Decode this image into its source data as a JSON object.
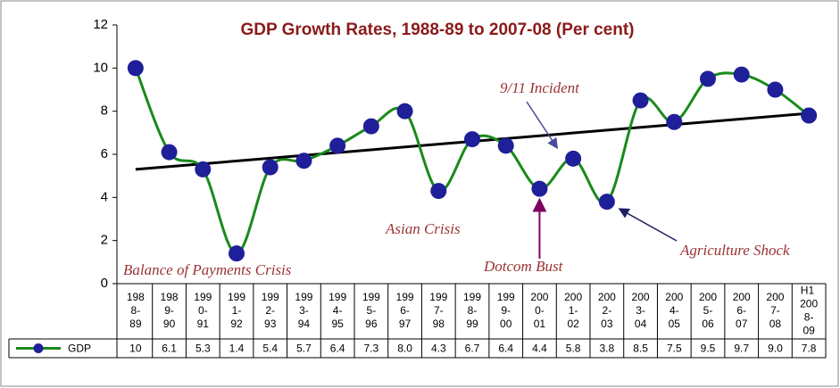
{
  "chart_data": {
    "type": "line",
    "title": "GDP Growth Rates, 1988-89  to 2007-08 (Per cent)",
    "categories": [
      "1988-89",
      "1989-90",
      "1990-91",
      "1991-92",
      "1992-93",
      "1993-94",
      "1994-95",
      "1995-96",
      "1996-97",
      "1997-98",
      "1998-99",
      "1999-00",
      "2000-01",
      "2001-02",
      "2002-03",
      "2003-04",
      "2004-05",
      "2005-06",
      "2006-07",
      "2007-08",
      "H1 2008-09"
    ],
    "series": [
      {
        "name": "GDP",
        "color": "#1a8a1a",
        "marker_color": "#1f1f99",
        "values": [
          10,
          6.1,
          5.3,
          1.4,
          5.4,
          5.7,
          6.4,
          7.3,
          8.0,
          4.3,
          6.7,
          6.4,
          4.4,
          5.8,
          3.8,
          8.5,
          7.5,
          9.5,
          9.7,
          9.0,
          7.8
        ],
        "value_labels": [
          "10",
          "6.1",
          "5.3",
          "1.4",
          "5.4",
          "5.7",
          "6.4",
          "7.3",
          "8.0",
          "4.3",
          "6.7",
          "6.4",
          "4.4",
          "5.8",
          "3.8",
          "8.5",
          "7.5",
          "9.5",
          "9.7",
          "9.0",
          "7.8"
        ]
      }
    ],
    "trend_line": {
      "start": 5.3,
      "end": 7.9,
      "color": "#000000"
    },
    "ylim": [
      0,
      12
    ],
    "yticks": [
      0,
      2,
      4,
      6,
      8,
      10,
      12
    ],
    "annotations": [
      "9/11 Incident",
      "Asian Crisis",
      "Dotcom Bust",
      "Agriculture Shock",
      "Balance of Payments Crisis"
    ]
  }
}
